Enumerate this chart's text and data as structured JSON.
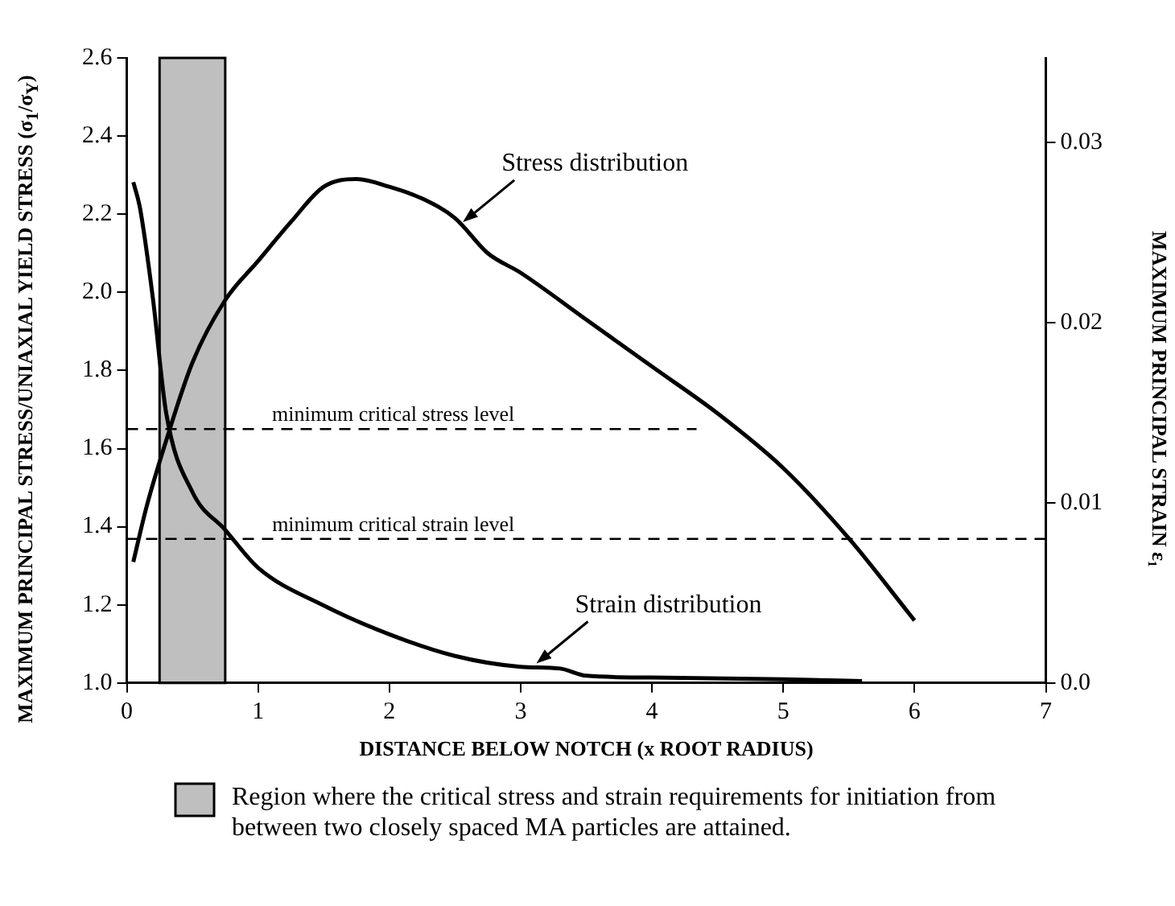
{
  "chart_data": {
    "type": "line",
    "xlabel": "DISTANCE BELOW NOTCH (x ROOT RADIUS)",
    "ylabel": "MAXIMUM PRINCIPAL STRESS/UNIAXIAL YIELD STRESS (σ$_{1}$/σ$_{Y}$)",
    "y2label": "MAXIMUM PRINCIPAL STRAIN ε₁",
    "series": [
      {
        "color": "#000000",
        "axis": "y",
        "x": [
          0.05,
          0.15,
          0.3,
          0.5,
          0.75,
          1,
          1.25,
          1.5,
          1.75,
          2,
          2.25,
          2.5,
          2.75,
          3,
          3.5,
          4,
          4.5,
          5,
          5.5,
          6
        ],
        "values": [
          1.31,
          1.45,
          1.62,
          1.82,
          1.98,
          2.08,
          2.18,
          2.27,
          2.29,
          2.27,
          2.24,
          2.19,
          2.1,
          2.05,
          1.93,
          1.81,
          1.69,
          1.55,
          1.37,
          1.16
        ]
      },
      {
        "color": "#000000",
        "axis": "y2",
        "x": [
          0.05,
          0.1,
          0.2,
          0.3,
          0.5,
          0.75,
          1,
          1.5,
          2,
          2.5,
          3,
          3.3,
          3.5,
          4,
          5,
          5.6
        ],
        "values": [
          0.0278,
          0.0264,
          0.0213,
          0.015,
          0.0106,
          0.0085,
          0.0064,
          0.0043,
          0.0027,
          0.0015,
          0.0009,
          0.0008,
          0.0004,
          0.0003,
          0.0002,
          0.0001
        ]
      }
    ],
    "xlim": [
      0,
      7
    ],
    "xticks": [
      0,
      1,
      2,
      3,
      4,
      5,
      6,
      7
    ],
    "ylim": [
      1,
      2.6
    ],
    "yticks": [
      {
        "value": 1,
        "label": "1.0"
      },
      {
        "value": 1.2,
        "label": "1.2"
      },
      {
        "value": 1.4,
        "label": "1.4"
      },
      {
        "value": 1.6,
        "label": "1.6"
      },
      {
        "value": 1.8,
        "label": "1.8"
      },
      {
        "value": 2,
        "label": "2.0"
      },
      {
        "value": 2.2,
        "label": "2.2"
      },
      {
        "value": 2.4,
        "label": "2.4"
      },
      {
        "value": 2.6,
        "label": "2.6"
      }
    ],
    "y2lim": [
      0,
      0.0347
    ],
    "y2ticks": [
      {
        "value": 0,
        "label": "0.0"
      },
      0.01,
      0.02,
      0.03
    ],
    "ref_lines": [
      {
        "axis": "y",
        "value": 1.65,
        "label": "minimum critical stress level",
        "line_style": "dashed",
        "color": "#000000"
      },
      {
        "axis": "y2",
        "value": 0.008,
        "label": "minimum critical strain level",
        "line_style": "dashed",
        "color": "#000000"
      }
    ],
    "bands": [
      {
        "axis": "x",
        "from": 0.25,
        "to": 0.75,
        "label": "Region where the critical stress and strain requirements for initiation from between two closely spaced MA particles are attained.",
        "color": "#000000"
      }
    ],
    "annotations": [
      {
        "text": "Stress distribution",
        "x": 2.56,
        "y": 2.18
      },
      {
        "text": "Strain distribution",
        "x": 3.12,
        "y": 1.05
      }
    ],
    "grid": false,
    "legend": "bottom",
    "marker": "none",
    "line_style": "solid"
  }
}
